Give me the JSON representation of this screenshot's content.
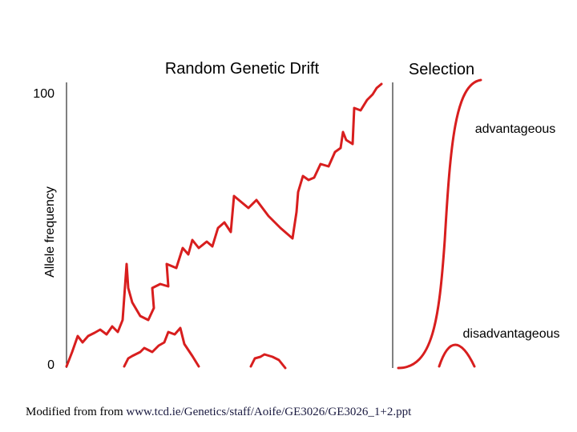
{
  "panels": {
    "drift_title": "Random Genetic Drift",
    "selection_title": "Selection"
  },
  "axis": {
    "label": "Allele frequency",
    "top": "100",
    "bottom": "0"
  },
  "labels": {
    "advantageous": "advantageous",
    "disadvantageous": "disadvantageous"
  },
  "footer": {
    "prefix": "Modified from from ",
    "link": "www.tcd.ie/Genetics/staff/Aoife/GE3026/GE3026_1+2.ppt"
  }
}
